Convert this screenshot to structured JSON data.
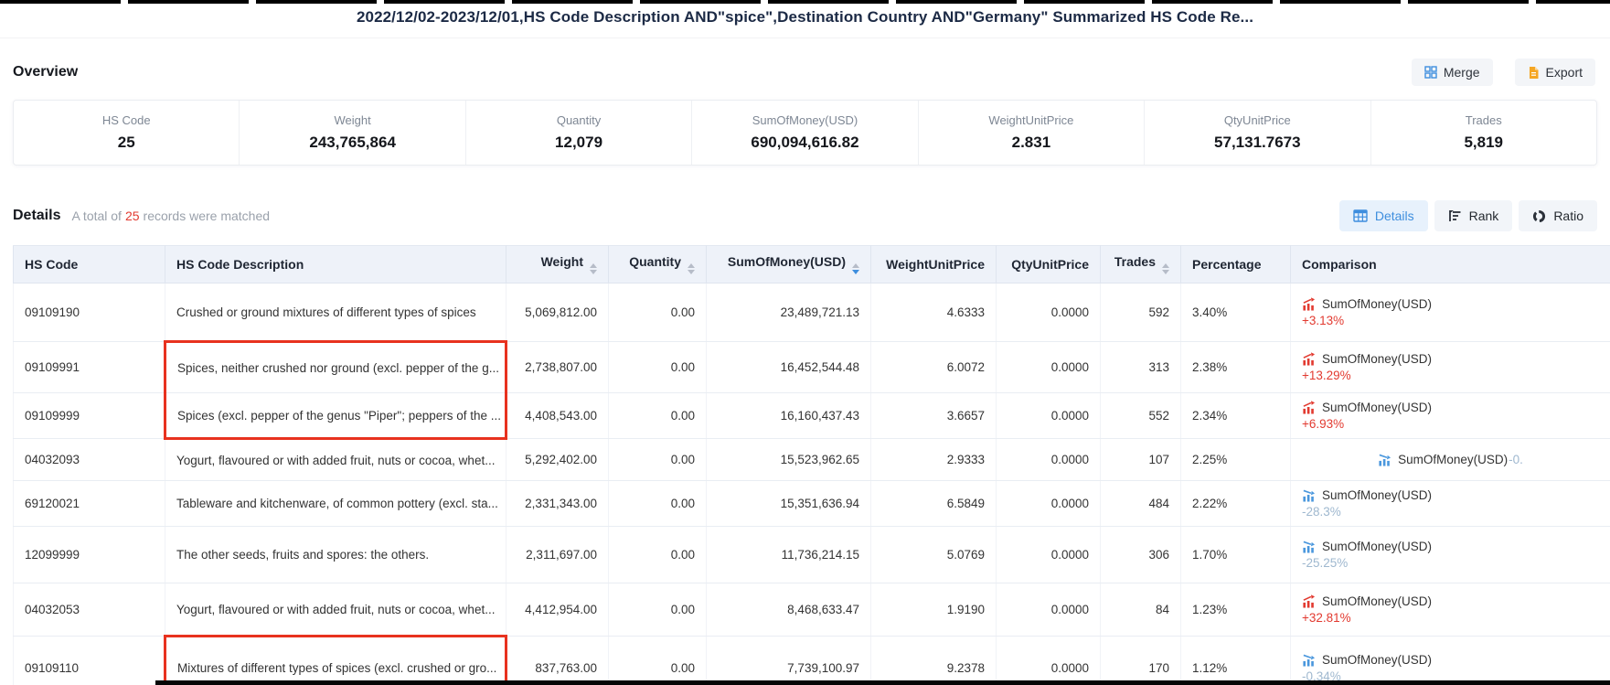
{
  "page": {
    "title": "2022/12/02-2023/12/01,HS Code Description AND\"spice\",Destination Country AND\"Germany\" Summarized HS Code Re..."
  },
  "overview": {
    "heading": "Overview",
    "merge_label": "Merge",
    "export_label": "Export",
    "stats": [
      {
        "label": "HS Code",
        "value": "25"
      },
      {
        "label": "Weight",
        "value": "243,765,864"
      },
      {
        "label": "Quantity",
        "value": "12,079"
      },
      {
        "label": "SumOfMoney(USD)",
        "value": "690,094,616.82"
      },
      {
        "label": "WeightUnitPrice",
        "value": "2.831"
      },
      {
        "label": "QtyUnitPrice",
        "value": "57,131.7673"
      },
      {
        "label": "Trades",
        "value": "5,819"
      }
    ]
  },
  "details": {
    "heading": "Details",
    "summary_prefix": "A total of",
    "summary_count": "25",
    "summary_suffix": "records were matched",
    "view_buttons": [
      {
        "label": "Details",
        "icon": "table-icon",
        "active": true
      },
      {
        "label": "Rank",
        "icon": "rank-icon",
        "active": false
      },
      {
        "label": "Ratio",
        "icon": "ratio-icon",
        "active": false
      }
    ]
  },
  "table": {
    "columns": [
      {
        "label": "HS Code",
        "align": "left",
        "sortable": false
      },
      {
        "label": "HS Code Description",
        "align": "left",
        "sortable": false
      },
      {
        "label": "Weight",
        "align": "right",
        "sortable": true
      },
      {
        "label": "Quantity",
        "align": "right",
        "sortable": true
      },
      {
        "label": "SumOfMoney(USD)",
        "align": "right",
        "sortable": true,
        "sort_active": "desc"
      },
      {
        "label": "WeightUnitPrice",
        "align": "right",
        "sortable": false
      },
      {
        "label": "QtyUnitPrice",
        "align": "right",
        "sortable": false
      },
      {
        "label": "Trades",
        "align": "right",
        "sortable": true
      },
      {
        "label": "Percentage",
        "align": "left",
        "sortable": false
      },
      {
        "label": "Comparison",
        "align": "left",
        "sortable": false
      }
    ],
    "rows": [
      {
        "hs_code": "09109190",
        "description": "Crushed or ground mixtures of different types of spices",
        "weight": "5,069,812.00",
        "quantity": "0.00",
        "sum_of_money": "23,489,721.13",
        "weight_unit_price": "4.6333",
        "qty_unit_price": "0.0000",
        "trades": "592",
        "percentage": "3.40%",
        "comparison": {
          "label": "SumOfMoney(USD)",
          "value": "+3.13%",
          "trend": "up",
          "inline": false
        },
        "highlight": "none"
      },
      {
        "hs_code": "09109991",
        "description": "Spices, neither crushed nor ground (excl. pepper of the g...",
        "weight": "2,738,807.00",
        "quantity": "0.00",
        "sum_of_money": "16,452,544.48",
        "weight_unit_price": "6.0072",
        "qty_unit_price": "0.0000",
        "trades": "313",
        "percentage": "2.38%",
        "comparison": {
          "label": "SumOfMoney(USD)",
          "value": "+13.29%",
          "trend": "up",
          "inline": false
        },
        "highlight": "group-start"
      },
      {
        "hs_code": "09109999",
        "description": "Spices (excl. pepper of the genus \"Piper\"; peppers of the ...",
        "weight": "4,408,543.00",
        "quantity": "0.00",
        "sum_of_money": "16,160,437.43",
        "weight_unit_price": "3.6657",
        "qty_unit_price": "0.0000",
        "trades": "552",
        "percentage": "2.34%",
        "comparison": {
          "label": "SumOfMoney(USD)",
          "value": "+6.93%",
          "trend": "up",
          "inline": false
        },
        "highlight": "group-end"
      },
      {
        "hs_code": "04032093",
        "description": "Yogurt, flavoured or with added fruit, nuts or cocoa, whet...",
        "weight": "5,292,402.00",
        "quantity": "0.00",
        "sum_of_money": "15,523,962.65",
        "weight_unit_price": "2.9333",
        "qty_unit_price": "0.0000",
        "trades": "107",
        "percentage": "2.25%",
        "comparison": {
          "label": "SumOfMoney(USD)",
          "value": "-0.",
          "trend": "down",
          "inline": true
        },
        "highlight": "none"
      },
      {
        "hs_code": "69120021",
        "description": "Tableware and kitchenware, of common pottery (excl. sta...",
        "weight": "2,331,343.00",
        "quantity": "0.00",
        "sum_of_money": "15,351,636.94",
        "weight_unit_price": "6.5849",
        "qty_unit_price": "0.0000",
        "trades": "484",
        "percentage": "2.22%",
        "comparison": {
          "label": "SumOfMoney(USD)",
          "value": "-28.3%",
          "trend": "down",
          "inline": false
        },
        "highlight": "none"
      },
      {
        "hs_code": "12099999",
        "description": "The other seeds, fruits and spores: the others.",
        "weight": "2,311,697.00",
        "quantity": "0.00",
        "sum_of_money": "11,736,214.15",
        "weight_unit_price": "5.0769",
        "qty_unit_price": "0.0000",
        "trades": "306",
        "percentage": "1.70%",
        "comparison": {
          "label": "SumOfMoney(USD)",
          "value": "-25.25%",
          "trend": "down",
          "inline": false
        },
        "highlight": "none"
      },
      {
        "hs_code": "04032053",
        "description": "Yogurt, flavoured or with added fruit, nuts or cocoa, whet...",
        "weight": "4,412,954.00",
        "quantity": "0.00",
        "sum_of_money": "8,468,633.47",
        "weight_unit_price": "1.9190",
        "qty_unit_price": "0.0000",
        "trades": "84",
        "percentage": "1.23%",
        "comparison": {
          "label": "SumOfMoney(USD)",
          "value": "+32.81%",
          "trend": "up",
          "inline": false
        },
        "highlight": "none"
      },
      {
        "hs_code": "09109110",
        "description": "Mixtures of different types of spices (excl. crushed or gro...",
        "weight": "837,763.00",
        "quantity": "0.00",
        "sum_of_money": "7,739,100.97",
        "weight_unit_price": "9.2378",
        "qty_unit_price": "0.0000",
        "trades": "170",
        "percentage": "1.12%",
        "comparison": {
          "label": "SumOfMoney(USD)",
          "value": "-0.34%",
          "trend": "down",
          "inline": false
        },
        "highlight": "single"
      }
    ]
  },
  "colors": {
    "accent_blue": "#3e8ede",
    "up_red": "#e23a30",
    "down_muted_text": "#9fb8cf",
    "down_icon_blue": "#4a97dd",
    "annotation_red": "#e8321f",
    "table_header_bg": "#eef2f9",
    "count_red": "#e23a30",
    "export_orange": "#f5a623"
  }
}
